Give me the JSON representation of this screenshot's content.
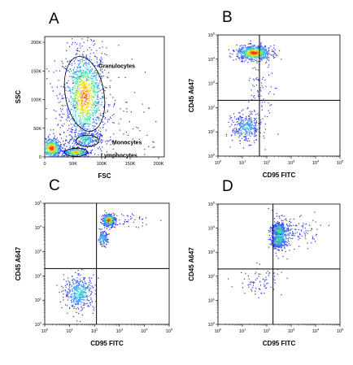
{
  "chart_data": [
    {
      "panel": "A",
      "type": "scatter",
      "xlabel": "FSC",
      "ylabel": "SSC",
      "x_scale": "linear",
      "y_scale": "linear",
      "xlim": [
        0,
        210000
      ],
      "ylim": [
        0,
        210000
      ],
      "x_ticks": [
        {
          "value": 0,
          "label": "0"
        },
        {
          "value": 50000,
          "label": "50K"
        },
        {
          "value": 100000,
          "label": "100K"
        },
        {
          "value": 150000,
          "label": "150K"
        },
        {
          "value": 200000,
          "label": "200K"
        }
      ],
      "y_ticks": [
        {
          "value": 0,
          "label": "0"
        },
        {
          "value": 50000,
          "label": "50K"
        },
        {
          "value": 100000,
          "label": "100K"
        },
        {
          "value": 150000,
          "label": "150K"
        },
        {
          "value": 200000,
          "label": "200K"
        }
      ],
      "populations": [
        {
          "x": 70000,
          "y": 105000,
          "sx": 19000,
          "sy": 42000,
          "n": 1300,
          "peak": 0.9
        },
        {
          "x": 70000,
          "y": 30000,
          "sx": 14000,
          "sy": 7000,
          "n": 260,
          "peak": 0.5
        },
        {
          "x": 55000,
          "y": 8000,
          "sx": 12000,
          "sy": 4000,
          "n": 330,
          "peak": 0.85
        },
        {
          "x": 12000,
          "y": 15000,
          "sx": 9000,
          "sy": 9000,
          "n": 450,
          "peak": 1.0
        },
        {
          "x": 90000,
          "y": 60000,
          "sx": 60000,
          "sy": 60000,
          "n": 200,
          "peak": 0.05
        }
      ],
      "gates": [
        {
          "label": "Granulocytes",
          "cx": 70000,
          "cy": 110000,
          "rx": 34000,
          "ry": 66000,
          "angle_deg": -10
        },
        {
          "label": "Monocytes",
          "cx": 75000,
          "cy": 28000,
          "rx": 20000,
          "ry": 10000,
          "angle_deg": 0
        },
        {
          "label": "Lymphocytes",
          "cx": 55000,
          "cy": 8000,
          "rx": 20000,
          "ry": 7000,
          "angle_deg": 0
        }
      ],
      "quadrant": null
    },
    {
      "panel": "B",
      "type": "scatter",
      "xlabel": "CD95 FITC",
      "ylabel": "CD45 A647",
      "x_scale": "log",
      "y_scale": "log",
      "xlim": [
        1,
        100000
      ],
      "ylim": [
        1,
        100000
      ],
      "x_ticks": [
        {
          "value": 1,
          "label": "10^0"
        },
        {
          "value": 10,
          "label": "10^1"
        },
        {
          "value": 100,
          "label": "10^2"
        },
        {
          "value": 1000,
          "label": "10^3"
        },
        {
          "value": 10000,
          "label": "10^4"
        },
        {
          "value": 100000,
          "label": "10^5"
        }
      ],
      "y_ticks": [
        {
          "value": 1,
          "label": "10^0"
        },
        {
          "value": 10,
          "label": "10^1"
        },
        {
          "value": 100,
          "label": "10^2"
        },
        {
          "value": 1000,
          "label": "10^3"
        },
        {
          "value": 10000,
          "label": "10^4"
        },
        {
          "value": 100000,
          "label": "10^5"
        }
      ],
      "populations": [
        {
          "x": 30,
          "y": 18000,
          "sx": 0.35,
          "sy": 0.15,
          "n": 700,
          "peak": 1.0
        },
        {
          "x": 15,
          "y": 15,
          "sx": 0.3,
          "sy": 0.3,
          "n": 350,
          "peak": 0.35
        },
        {
          "x": 60,
          "y": 600,
          "sx": 0.3,
          "sy": 0.5,
          "n": 70,
          "peak": 0.1
        }
      ],
      "gates": [],
      "quadrant": {
        "x": 50,
        "y": 200
      }
    },
    {
      "panel": "C",
      "type": "scatter",
      "xlabel": "CD95 FITC",
      "ylabel": "CD45 A647",
      "x_scale": "log",
      "y_scale": "log",
      "xlim": [
        1,
        100000
      ],
      "ylim": [
        1,
        100000
      ],
      "x_ticks": [
        {
          "value": 1,
          "label": "10^0"
        },
        {
          "value": 10,
          "label": "10^1"
        },
        {
          "value": 100,
          "label": "10^2"
        },
        {
          "value": 1000,
          "label": "10^3"
        },
        {
          "value": 10000,
          "label": "10^4"
        },
        {
          "value": 100000,
          "label": "10^5"
        }
      ],
      "y_ticks": [
        {
          "value": 1,
          "label": "10^0"
        },
        {
          "value": 10,
          "label": "10^1"
        },
        {
          "value": 100,
          "label": "10^2"
        },
        {
          "value": 1000,
          "label": "10^3"
        },
        {
          "value": 10000,
          "label": "10^4"
        },
        {
          "value": 100000,
          "label": "10^5"
        }
      ],
      "populations": [
        {
          "x": 380,
          "y": 20000,
          "sx": 0.13,
          "sy": 0.13,
          "n": 400,
          "peak": 1.0
        },
        {
          "x": 220,
          "y": 3500,
          "sx": 0.1,
          "sy": 0.14,
          "n": 140,
          "peak": 0.45
        },
        {
          "x": 25,
          "y": 20,
          "sx": 0.3,
          "sy": 0.35,
          "n": 420,
          "peak": 0.45
        },
        {
          "x": 2000,
          "y": 20000,
          "sx": 0.5,
          "sy": 0.15,
          "n": 45,
          "peak": 0.05
        }
      ],
      "gates": [],
      "quadrant": {
        "x": 120,
        "y": 200
      }
    },
    {
      "panel": "D",
      "type": "scatter",
      "xlabel": "CD95 FITC",
      "ylabel": "CD45 A647",
      "x_scale": "log",
      "y_scale": "log",
      "xlim": [
        1,
        100000
      ],
      "ylim": [
        1,
        100000
      ],
      "x_ticks": [
        {
          "value": 1,
          "label": "10^0"
        },
        {
          "value": 10,
          "label": "10^1"
        },
        {
          "value": 100,
          "label": "10^2"
        },
        {
          "value": 1000,
          "label": "10^3"
        },
        {
          "value": 10000,
          "label": "10^4"
        },
        {
          "value": 100000,
          "label": "10^5"
        }
      ],
      "y_ticks": [
        {
          "value": 1,
          "label": "10^0"
        },
        {
          "value": 10,
          "label": "10^1"
        },
        {
          "value": 100,
          "label": "10^2"
        },
        {
          "value": 1000,
          "label": "10^3"
        },
        {
          "value": 10000,
          "label": "10^4"
        },
        {
          "value": 100000,
          "label": "10^5"
        }
      ],
      "populations": [
        {
          "x": 300,
          "y": 9000,
          "sx": 0.11,
          "sy": 0.11,
          "n": 420,
          "peak": 1.0
        },
        {
          "x": 300,
          "y": 2800,
          "sx": 0.11,
          "sy": 0.12,
          "n": 380,
          "peak": 0.95
        },
        {
          "x": 350,
          "y": 5000,
          "sx": 0.2,
          "sy": 0.35,
          "n": 300,
          "peak": 0.5
        },
        {
          "x": 2000,
          "y": 7000,
          "sx": 0.45,
          "sy": 0.3,
          "n": 90,
          "peak": 0.1
        },
        {
          "x": 60,
          "y": 60,
          "sx": 0.45,
          "sy": 0.3,
          "n": 80,
          "peak": 0.05
        }
      ],
      "gates": [],
      "quadrant": {
        "x": 180,
        "y": 200
      }
    }
  ]
}
